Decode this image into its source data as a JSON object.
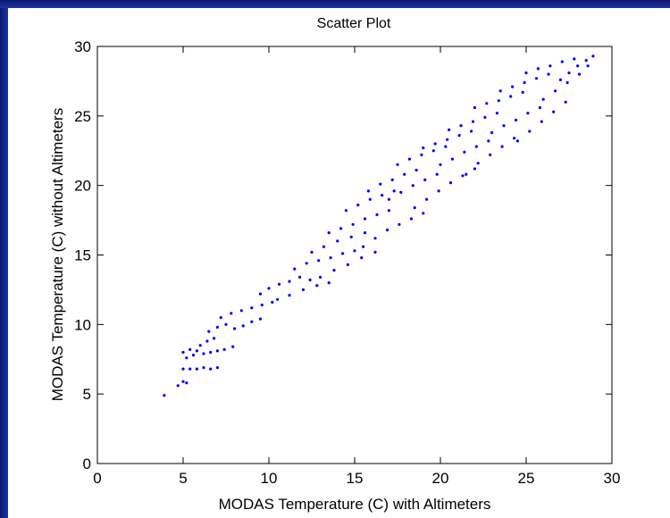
{
  "chart_data": {
    "type": "scatter",
    "title": "Scatter Plot",
    "xlabel": "MODAS Temperature (C) with Altimeters",
    "ylabel": "MODAS Temperature (C) without Altimeters",
    "xlim": [
      0,
      30
    ],
    "ylim": [
      0,
      30
    ],
    "xticks": [
      0,
      5,
      10,
      15,
      20,
      25,
      30
    ],
    "yticks": [
      0,
      5,
      10,
      15,
      20,
      25,
      30
    ],
    "grid": false,
    "legend": "none",
    "series": [
      {
        "color": "#0000ff",
        "marker": "dot",
        "points": [
          [
            3.9,
            4.9
          ],
          [
            4.7,
            5.6
          ],
          [
            5.0,
            5.9
          ],
          [
            5.2,
            5.8
          ],
          [
            5.0,
            6.8
          ],
          [
            5.4,
            6.8
          ],
          [
            5.8,
            6.8
          ],
          [
            6.2,
            6.9
          ],
          [
            6.6,
            6.8
          ],
          [
            7.0,
            6.9
          ],
          [
            5.0,
            8.0
          ],
          [
            5.4,
            8.2
          ],
          [
            5.8,
            8.1
          ],
          [
            6.2,
            7.9
          ],
          [
            6.6,
            8.0
          ],
          [
            7.0,
            8.1
          ],
          [
            7.4,
            8.2
          ],
          [
            7.9,
            8.4
          ],
          [
            5.2,
            7.6
          ],
          [
            5.6,
            7.8
          ],
          [
            6.0,
            8.5
          ],
          [
            6.4,
            8.8
          ],
          [
            6.8,
            9.0
          ],
          [
            6.5,
            9.5
          ],
          [
            7.0,
            9.8
          ],
          [
            7.5,
            10.0
          ],
          [
            8.0,
            9.7
          ],
          [
            8.5,
            9.9
          ],
          [
            9.0,
            10.2
          ],
          [
            9.5,
            10.4
          ],
          [
            7.2,
            10.5
          ],
          [
            7.8,
            10.8
          ],
          [
            8.4,
            11.0
          ],
          [
            9.0,
            11.2
          ],
          [
            9.6,
            11.4
          ],
          [
            10.2,
            11.6
          ],
          [
            9.5,
            12.2
          ],
          [
            10.0,
            12.6
          ],
          [
            10.6,
            12.9
          ],
          [
            11.2,
            13.1
          ],
          [
            11.8,
            13.4
          ],
          [
            12.4,
            13.2
          ],
          [
            10.5,
            11.8
          ],
          [
            11.2,
            12.1
          ],
          [
            12.0,
            12.5
          ],
          [
            12.8,
            12.8
          ],
          [
            13.5,
            13.0
          ],
          [
            11.5,
            14.0
          ],
          [
            12.2,
            14.4
          ],
          [
            12.9,
            14.6
          ],
          [
            13.6,
            14.8
          ],
          [
            14.3,
            15.1
          ],
          [
            15.0,
            15.3
          ],
          [
            12.5,
            15.2
          ],
          [
            13.2,
            15.6
          ],
          [
            14.0,
            16.0
          ],
          [
            14.8,
            16.3
          ],
          [
            15.6,
            16.6
          ],
          [
            13.0,
            13.4
          ],
          [
            13.8,
            13.9
          ],
          [
            14.6,
            14.3
          ],
          [
            15.4,
            14.8
          ],
          [
            16.2,
            15.2
          ],
          [
            13.5,
            16.6
          ],
          [
            14.2,
            16.9
          ],
          [
            14.9,
            17.2
          ],
          [
            15.6,
            17.6
          ],
          [
            16.3,
            17.9
          ],
          [
            17.0,
            18.2
          ],
          [
            14.5,
            18.2
          ],
          [
            15.2,
            18.6
          ],
          [
            15.9,
            19.0
          ],
          [
            16.6,
            19.3
          ],
          [
            17.3,
            19.6
          ],
          [
            15.5,
            15.6
          ],
          [
            16.2,
            16.2
          ],
          [
            16.9,
            16.8
          ],
          [
            17.6,
            17.2
          ],
          [
            18.3,
            17.6
          ],
          [
            19.0,
            18.0
          ],
          [
            15.8,
            19.6
          ],
          [
            16.5,
            20.1
          ],
          [
            17.2,
            20.4
          ],
          [
            17.9,
            20.8
          ],
          [
            18.6,
            21.1
          ],
          [
            17.0,
            19.0
          ],
          [
            17.7,
            19.5
          ],
          [
            18.4,
            20.0
          ],
          [
            19.1,
            20.4
          ],
          [
            19.8,
            20.8
          ],
          [
            17.5,
            21.5
          ],
          [
            18.2,
            21.9
          ],
          [
            18.9,
            22.2
          ],
          [
            19.6,
            22.5
          ],
          [
            20.3,
            22.8
          ],
          [
            18.5,
            18.4
          ],
          [
            19.2,
            19.0
          ],
          [
            19.9,
            19.6
          ],
          [
            20.6,
            20.2
          ],
          [
            21.3,
            20.7
          ],
          [
            22.0,
            21.2
          ],
          [
            19.0,
            22.7
          ],
          [
            19.7,
            23.0
          ],
          [
            20.4,
            23.3
          ],
          [
            21.1,
            23.6
          ],
          [
            21.8,
            23.9
          ],
          [
            20.0,
            21.5
          ],
          [
            20.7,
            21.9
          ],
          [
            21.4,
            22.4
          ],
          [
            22.1,
            22.8
          ],
          [
            22.8,
            23.2
          ],
          [
            20.5,
            24.0
          ],
          [
            21.2,
            24.3
          ],
          [
            21.9,
            24.6
          ],
          [
            22.6,
            24.9
          ],
          [
            23.3,
            25.2
          ],
          [
            21.5,
            20.8
          ],
          [
            22.2,
            21.6
          ],
          [
            22.9,
            22.2
          ],
          [
            23.6,
            22.8
          ],
          [
            24.3,
            23.4
          ],
          [
            22.0,
            25.6
          ],
          [
            22.7,
            25.9
          ],
          [
            23.4,
            26.1
          ],
          [
            24.1,
            26.4
          ],
          [
            24.8,
            26.7
          ],
          [
            23.0,
            23.8
          ],
          [
            23.7,
            24.3
          ],
          [
            24.4,
            24.7
          ],
          [
            25.1,
            25.2
          ],
          [
            25.8,
            25.6
          ],
          [
            23.5,
            26.8
          ],
          [
            24.2,
            27.1
          ],
          [
            24.9,
            27.4
          ],
          [
            25.6,
            27.7
          ],
          [
            26.3,
            28.0
          ],
          [
            24.5,
            23.2
          ],
          [
            25.2,
            23.9
          ],
          [
            25.9,
            24.6
          ],
          [
            26.6,
            25.3
          ],
          [
            27.3,
            26.0
          ],
          [
            25.0,
            28.1
          ],
          [
            25.7,
            28.4
          ],
          [
            26.4,
            28.6
          ],
          [
            27.1,
            28.9
          ],
          [
            27.8,
            29.1
          ],
          [
            26.0,
            26.2
          ],
          [
            26.7,
            26.8
          ],
          [
            27.4,
            27.4
          ],
          [
            28.1,
            28.0
          ],
          [
            28.6,
            28.6
          ],
          [
            27.0,
            27.6
          ],
          [
            27.5,
            28.1
          ],
          [
            28.0,
            28.6
          ],
          [
            28.5,
            29.0
          ],
          [
            28.9,
            29.3
          ]
        ]
      }
    ]
  }
}
